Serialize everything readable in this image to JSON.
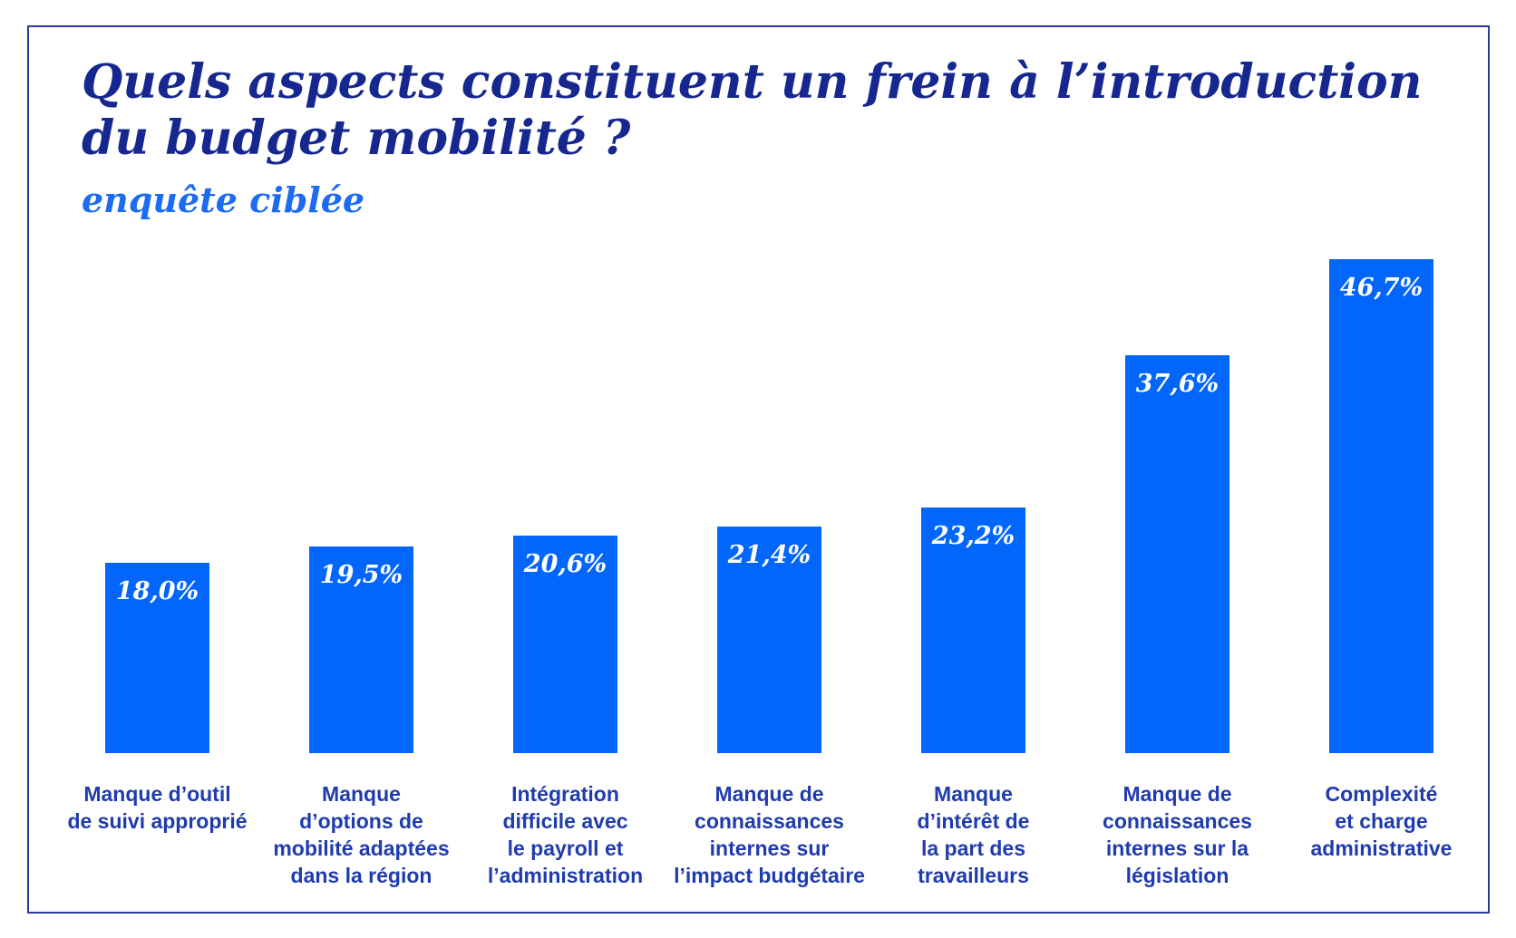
{
  "frame": {
    "border_color": "#2a3b9e"
  },
  "header": {
    "title": "Quels aspects constituent un frein à l’introduction\ndu budget mobilité ?",
    "subtitle": "enquête ciblée",
    "title_color": "#16288f",
    "subtitle_color": "#1b6cf2"
  },
  "chart_data": {
    "type": "bar",
    "title": "Quels aspects constituent un frein à l’introduction du budget mobilité ?",
    "subtitle": "enquête ciblée",
    "unit": "%",
    "ylim": [
      0,
      50
    ],
    "grid": false,
    "legend": false,
    "bar_color": "#0366fa",
    "value_label_color": "#ffffff",
    "category_label_color": "#1f3bad",
    "categories": [
      "Manque d’outil\nde suivi approprié",
      "Manque\nd’options de\nmobilité adaptées\ndans la région",
      "Intégration\ndifficile avec\nle payroll et\nl’administration",
      "Manque de\nconnaissances\ninternes sur\nl’impact budgétaire",
      "Manque\nd’intérêt de\nla part des\ntravailleurs",
      "Manque de\nconnaissances\ninternes sur la\nlégislation",
      "Complexité\net charge\nadministrative"
    ],
    "values": [
      18.0,
      19.5,
      20.6,
      21.4,
      23.2,
      37.6,
      46.7
    ],
    "value_labels": [
      "18,0%",
      "19,5%",
      "20,6%",
      "21,4%",
      "23,2%",
      "37,6%",
      "46,7%"
    ]
  }
}
